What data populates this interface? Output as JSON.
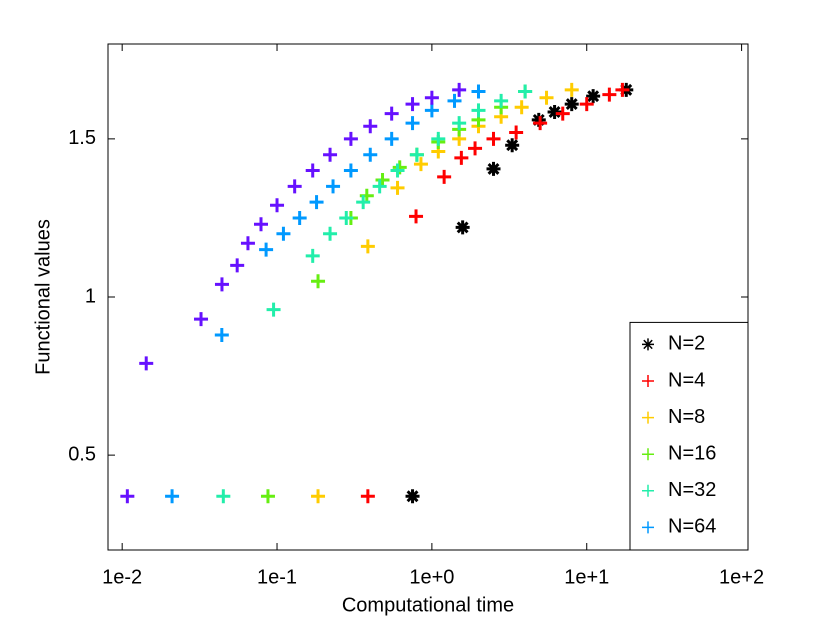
{
  "chart_data": {
    "type": "scatter",
    "xlabel": "Computational time",
    "ylabel": "Functional values",
    "xscale": "log",
    "xlim": [
      0.0081,
      110
    ],
    "ylim": [
      0.2,
      1.8
    ],
    "xticks": [
      {
        "value": 0.01,
        "label": "1e-2"
      },
      {
        "value": 0.1,
        "label": "1e-1"
      },
      {
        "value": 1,
        "label": "1e+0"
      },
      {
        "value": 10,
        "label": "1e+1"
      },
      {
        "value": 100,
        "label": "1e+2"
      }
    ],
    "yticks": [
      0.5,
      1,
      1.5
    ],
    "legend": "lower right",
    "series": [
      {
        "name": "N=2",
        "color": "#000000",
        "marker": "asterisk",
        "x": [
          0.75,
          1.58,
          2.5,
          3.3,
          4.9,
          6.2,
          8,
          11,
          18
        ],
        "values": [
          0.37,
          1.22,
          1.405,
          1.48,
          1.56,
          1.585,
          1.61,
          1.635,
          1.655
        ]
      },
      {
        "name": "N=4",
        "color": "#ff0000",
        "marker": "plus",
        "x": [
          0.386,
          0.79,
          1.2,
          1.55,
          1.9,
          2.5,
          3.5,
          5,
          7,
          10,
          14,
          17
        ],
        "values": [
          0.37,
          1.255,
          1.38,
          1.44,
          1.47,
          1.5,
          1.52,
          1.55,
          1.58,
          1.61,
          1.64,
          1.655
        ]
      },
      {
        "name": "N=8",
        "color": "#ffcc00",
        "marker": "plus",
        "x": [
          0.184,
          0.386,
          0.6,
          0.85,
          1.1,
          1.5,
          2,
          2.8,
          3.8,
          5.5,
          8
        ],
        "values": [
          0.37,
          1.16,
          1.345,
          1.42,
          1.46,
          1.5,
          1.54,
          1.57,
          1.6,
          1.63,
          1.655
        ]
      },
      {
        "name": "N=16",
        "color": "#66ee11",
        "marker": "plus",
        "x": [
          0.0874,
          0.184,
          0.3,
          0.38,
          0.48,
          0.62,
          0.8,
          1.1,
          1.5,
          2,
          2.8,
          4
        ],
        "values": [
          0.37,
          1.05,
          1.25,
          1.32,
          1.37,
          1.41,
          1.45,
          1.49,
          1.53,
          1.56,
          1.6,
          1.65
        ]
      },
      {
        "name": "N=32",
        "color": "#22eeaa",
        "marker": "plus",
        "x": [
          0.045,
          0.095,
          0.17,
          0.22,
          0.28,
          0.36,
          0.46,
          0.6,
          0.8,
          1.1,
          1.5,
          2,
          2.8,
          4
        ],
        "values": [
          0.37,
          0.96,
          1.13,
          1.2,
          1.25,
          1.3,
          1.35,
          1.4,
          1.45,
          1.5,
          1.55,
          1.59,
          1.62,
          1.65
        ]
      },
      {
        "name": "N=64",
        "color": "#0099ff",
        "marker": "plus",
        "x": [
          0.021,
          0.044,
          0.085,
          0.11,
          0.14,
          0.18,
          0.23,
          0.3,
          0.4,
          0.55,
          0.75,
          1,
          1.4,
          2
        ],
        "values": [
          0.37,
          0.88,
          1.15,
          1.2,
          1.25,
          1.3,
          1.35,
          1.4,
          1.45,
          1.5,
          1.55,
          1.59,
          1.62,
          1.65
        ]
      },
      {
        "name": null,
        "color": "#6611ff",
        "marker": "plus",
        "x": [
          0.0108,
          0.0143,
          0.0323,
          0.0441,
          0.0553,
          0.0649,
          0.0788,
          0.1,
          0.13,
          0.17,
          0.22,
          0.3,
          0.4,
          0.55,
          0.75,
          1,
          1.5
        ],
        "values": [
          0.37,
          0.79,
          0.93,
          1.04,
          1.1,
          1.17,
          1.23,
          1.29,
          1.35,
          1.4,
          1.45,
          1.5,
          1.54,
          1.58,
          1.61,
          1.63,
          1.655
        ]
      }
    ]
  }
}
